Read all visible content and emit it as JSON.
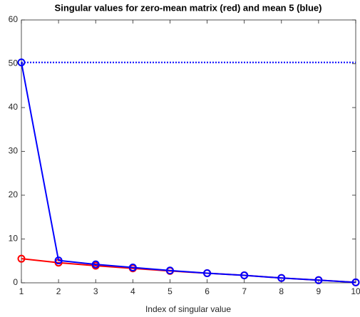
{
  "chart_data": {
    "type": "line",
    "title": "Singular values for zero-mean matrix (red) and mean 5 (blue)",
    "xlabel": "Index of singular value",
    "x": [
      1,
      2,
      3,
      4,
      5,
      6,
      7,
      8,
      9,
      10
    ],
    "series": [
      {
        "color": "#ff0000",
        "values": [
          5.5,
          4.6,
          3.9,
          3.3,
          2.7,
          2.2,
          1.7,
          1.1,
          0.6,
          0.1
        ]
      },
      {
        "color": "#0000ff",
        "values": [
          50.3,
          5.1,
          4.2,
          3.5,
          2.8,
          2.2,
          1.7,
          1.1,
          0.6,
          0.1
        ]
      }
    ],
    "hline": {
      "value": 50.3,
      "color": "#0000ff"
    },
    "xlim": [
      1,
      10
    ],
    "xticks": [
      1,
      2,
      3,
      4,
      5,
      6,
      7,
      8,
      9,
      10
    ],
    "ylim": [
      0,
      60
    ],
    "yticks": [
      0,
      10,
      20,
      30,
      40,
      50,
      60
    ]
  }
}
